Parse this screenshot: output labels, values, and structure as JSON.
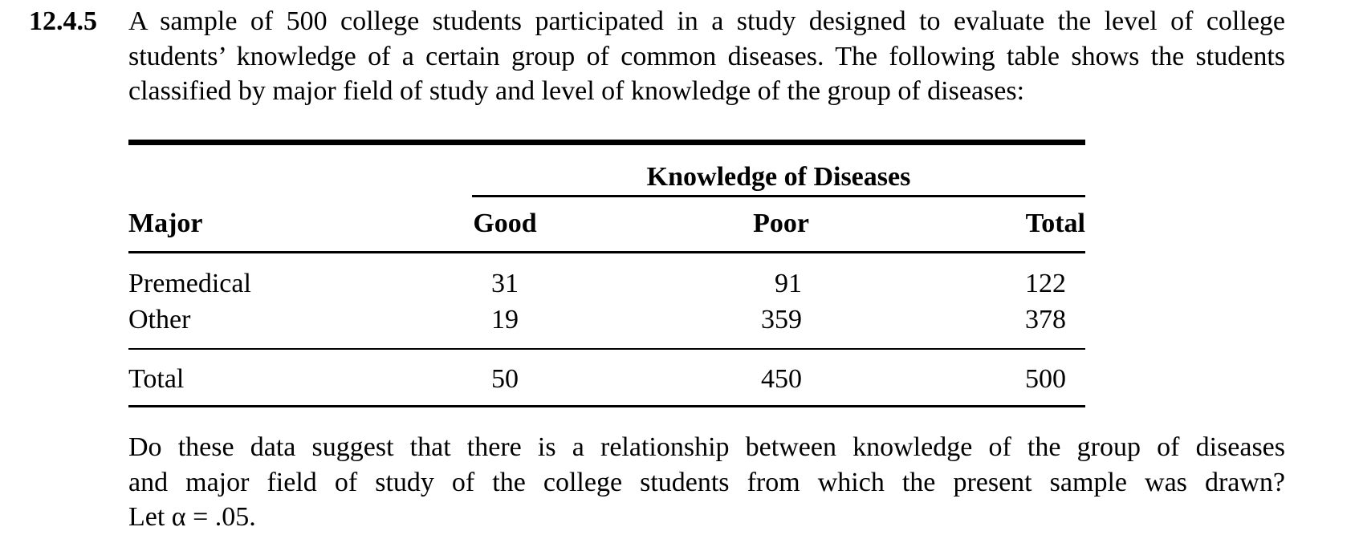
{
  "problem": {
    "number": "12.4.5",
    "intro_lines": [
      "A sample of 500 college students participated in a study designed to evaluate the level of college",
      "students’ knowledge of a certain group of common diseases. The following table shows the students",
      "classified by major field of study and level of knowledge of the group of diseases:"
    ],
    "question_lines": [
      "Do these data suggest that there is a relationship between knowledge of the group of diseases",
      "and major field of study of the college students from which the present sample was drawn?",
      "Let α = .05."
    ]
  },
  "table": {
    "spanner": "Knowledge of Diseases",
    "headers": [
      "Major",
      "Good",
      "Poor",
      "Total"
    ],
    "rows": [
      [
        "Premedical",
        "31",
        "91",
        "122"
      ],
      [
        "Other",
        "19",
        "359",
        "378"
      ]
    ],
    "total_row": [
      "Total",
      "50",
      "450",
      "500"
    ]
  }
}
